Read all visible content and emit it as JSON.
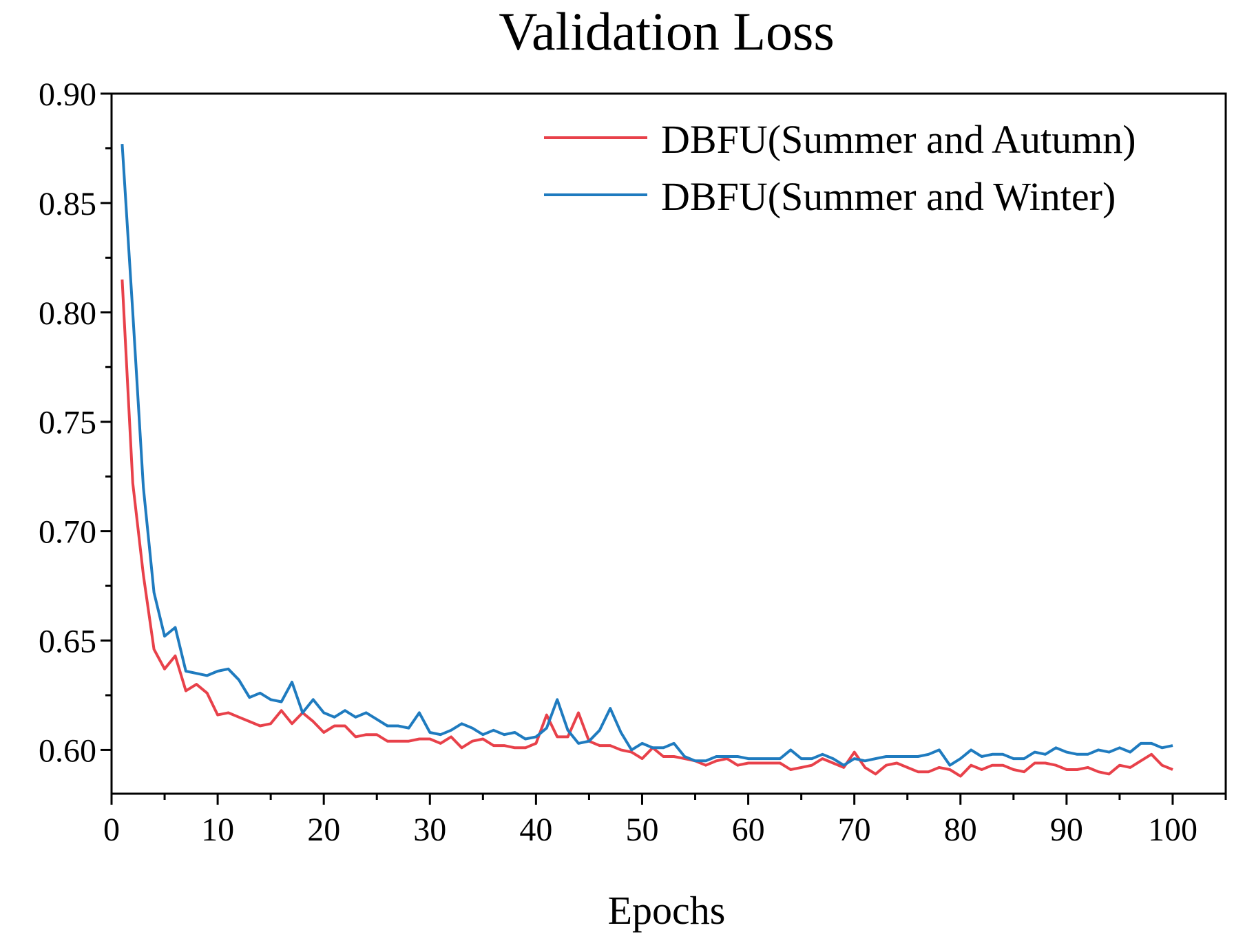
{
  "chart_data": {
    "type": "line",
    "title": "Validation Loss",
    "xlabel": "Epochs",
    "ylabel": "",
    "xlim": [
      0,
      105
    ],
    "ylim": [
      0.58,
      0.9
    ],
    "xticks": [
      0,
      10,
      20,
      30,
      40,
      50,
      60,
      70,
      80,
      90,
      100
    ],
    "xtick_labels": [
      "0",
      "10",
      "20",
      "30",
      "40",
      "50",
      "60",
      "70",
      "80",
      "90",
      "100"
    ],
    "yticks": [
      0.6,
      0.65,
      0.7,
      0.75,
      0.8,
      0.85,
      0.9
    ],
    "ytick_labels": [
      "0.60",
      "0.65",
      "0.70",
      "0.75",
      "0.80",
      "0.85",
      "0.90"
    ],
    "grid": false,
    "legend_position": "top-right",
    "series": [
      {
        "name": "DBFU(Summer and Autumn)",
        "color": "#e8414a",
        "x_start": 1,
        "values": [
          0.815,
          0.722,
          0.68,
          0.646,
          0.637,
          0.643,
          0.627,
          0.63,
          0.626,
          0.616,
          0.617,
          0.615,
          0.613,
          0.611,
          0.612,
          0.618,
          0.612,
          0.617,
          0.613,
          0.608,
          0.611,
          0.611,
          0.606,
          0.607,
          0.607,
          0.604,
          0.604,
          0.604,
          0.605,
          0.605,
          0.603,
          0.606,
          0.601,
          0.604,
          0.605,
          0.602,
          0.602,
          0.601,
          0.601,
          0.603,
          0.616,
          0.606,
          0.606,
          0.617,
          0.604,
          0.602,
          0.602,
          0.6,
          0.599,
          0.596,
          0.601,
          0.597,
          0.597,
          0.596,
          0.595,
          0.593,
          0.595,
          0.596,
          0.593,
          0.594,
          0.594,
          0.594,
          0.594,
          0.591,
          0.592,
          0.593,
          0.596,
          0.594,
          0.592,
          0.599,
          0.592,
          0.589,
          0.593,
          0.594,
          0.592,
          0.59,
          0.59,
          0.592,
          0.591,
          0.588,
          0.593,
          0.591,
          0.593,
          0.593,
          0.591,
          0.59,
          0.594,
          0.594,
          0.593,
          0.591,
          0.591,
          0.592,
          0.59,
          0.589,
          0.593,
          0.592,
          0.595,
          0.598,
          0.593,
          0.591
        ]
      },
      {
        "name": "DBFU(Summer and Winter)",
        "color": "#1f7bbf",
        "x_start": 1,
        "values": [
          0.877,
          0.8,
          0.72,
          0.672,
          0.652,
          0.656,
          0.636,
          0.635,
          0.634,
          0.636,
          0.637,
          0.632,
          0.624,
          0.626,
          0.623,
          0.622,
          0.631,
          0.617,
          0.623,
          0.617,
          0.615,
          0.618,
          0.615,
          0.617,
          0.614,
          0.611,
          0.611,
          0.61,
          0.617,
          0.608,
          0.607,
          0.609,
          0.612,
          0.61,
          0.607,
          0.609,
          0.607,
          0.608,
          0.605,
          0.606,
          0.61,
          0.623,
          0.609,
          0.603,
          0.604,
          0.609,
          0.619,
          0.608,
          0.6,
          0.603,
          0.601,
          0.601,
          0.603,
          0.597,
          0.595,
          0.595,
          0.597,
          0.597,
          0.597,
          0.596,
          0.596,
          0.596,
          0.596,
          0.6,
          0.596,
          0.596,
          0.598,
          0.596,
          0.593,
          0.596,
          0.595,
          0.596,
          0.597,
          0.597,
          0.597,
          0.597,
          0.598,
          0.6,
          0.593,
          0.596,
          0.6,
          0.597,
          0.598,
          0.598,
          0.596,
          0.596,
          0.599,
          0.598,
          0.601,
          0.599,
          0.598,
          0.598,
          0.6,
          0.599,
          0.601,
          0.599,
          0.603,
          0.603,
          0.601,
          0.602
        ]
      }
    ]
  }
}
